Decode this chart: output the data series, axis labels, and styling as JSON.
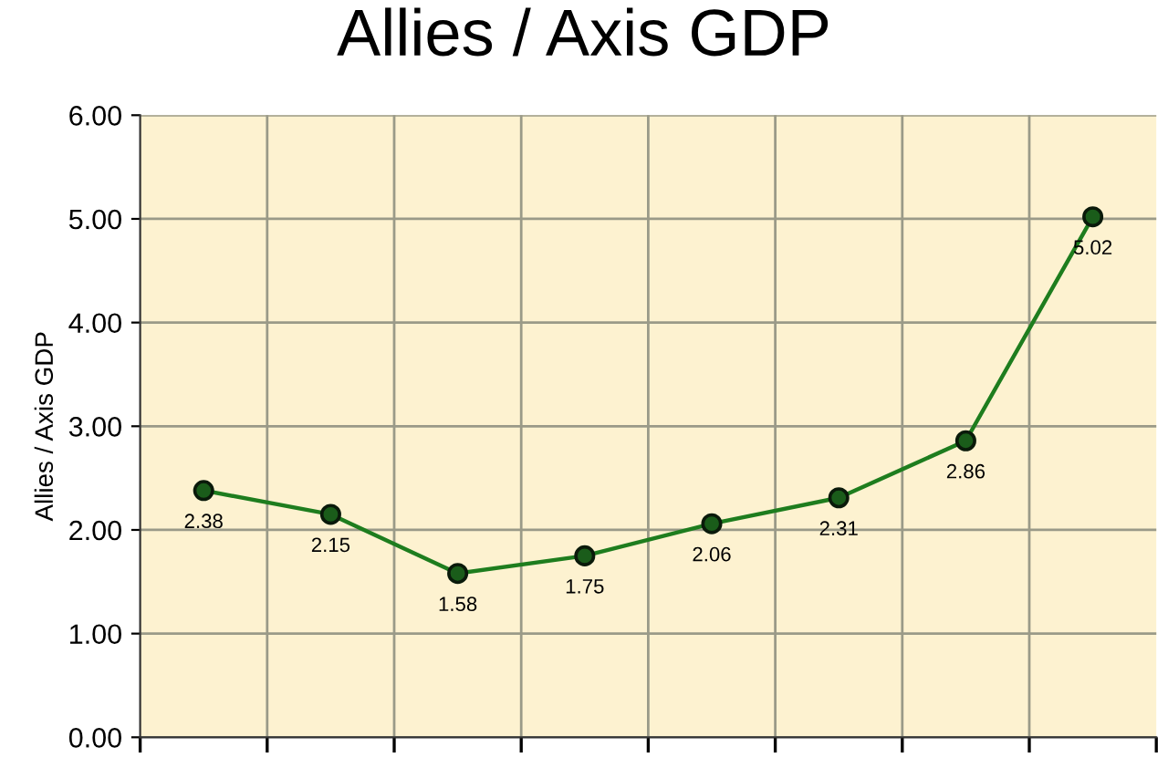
{
  "chart_data": {
    "type": "line",
    "title": "Allies / Axis GDP",
    "ylabel": "Allies / Axis GDP",
    "categories": [
      null,
      null,
      null,
      null,
      null,
      null,
      null,
      null
    ],
    "values": [
      2.38,
      2.15,
      1.58,
      1.75,
      2.06,
      2.31,
      2.86,
      5.02
    ],
    "color": "#1e7d1e",
    "marker": "circle",
    "line_style": "solid",
    "data_labels": true,
    "grid": true,
    "ylim": [
      0,
      6
    ],
    "yticks": [
      {
        "value": 0,
        "label": "0.00"
      },
      {
        "value": 1,
        "label": "1.00"
      },
      {
        "value": 2,
        "label": "2.00"
      },
      {
        "value": 3,
        "label": "3.00"
      },
      {
        "value": 4,
        "label": "4.00"
      },
      {
        "value": 5,
        "label": "5.00"
      },
      {
        "value": 6,
        "label": "6.00"
      }
    ]
  }
}
